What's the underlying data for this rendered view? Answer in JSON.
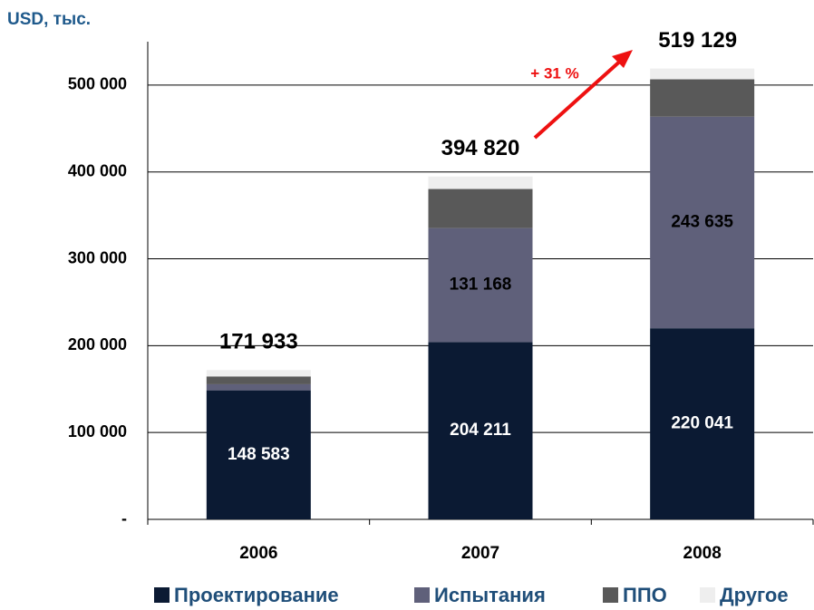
{
  "chart_data": {
    "type": "stacked_bar",
    "y_unit_label": "USD, тыс.",
    "categories": [
      "2006",
      "2007",
      "2008"
    ],
    "series": [
      {
        "name": "Проектирование",
        "color": "#0b1a33",
        "values": [
          148583,
          204211,
          220041
        ],
        "value_labels": [
          "148 583",
          "204 211",
          "220 041"
        ],
        "label_color": "#ffffff"
      },
      {
        "name": "Испытания",
        "color": "#5f607a",
        "values": [
          7000,
          131168,
          243635
        ],
        "value_labels": [
          null,
          "131 168",
          "243 635"
        ],
        "label_color": "#000000"
      },
      {
        "name": "ППО",
        "color": "#595959",
        "values": [
          9000,
          45000,
          43000
        ]
      },
      {
        "name": "Другое",
        "color": "#eeeeee",
        "values": [
          7350,
          14441,
          12453
        ]
      }
    ],
    "total_labels": [
      "171 933",
      "394 820",
      "519 129"
    ],
    "growth_annotation": {
      "text": "+ 31 %",
      "color": "#ee1111"
    },
    "ylim": [
      0,
      550000
    ],
    "yticks": [
      {
        "value": 0,
        "label": "-"
      },
      {
        "value": 100000,
        "label": "100 000"
      },
      {
        "value": 200000,
        "label": "200 000"
      },
      {
        "value": 300000,
        "label": "300 000"
      },
      {
        "value": 400000,
        "label": "400 000"
      },
      {
        "value": 500000,
        "label": "500 000"
      }
    ],
    "grid": true
  }
}
